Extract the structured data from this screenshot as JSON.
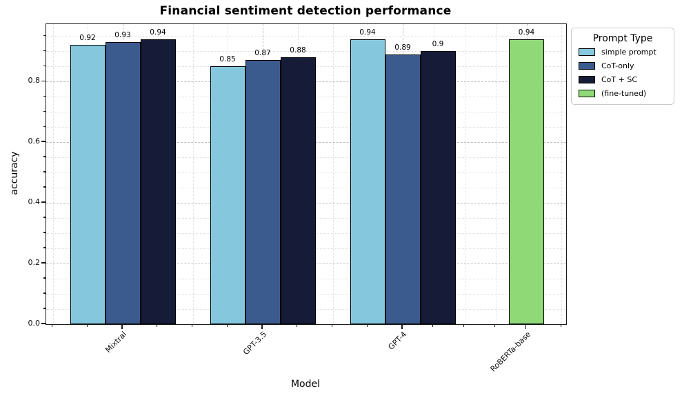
{
  "chart_data": {
    "type": "bar",
    "title": "Financial sentiment detection performance",
    "xlabel": "Model",
    "ylabel": "accuracy",
    "categories": [
      "Mixtral",
      "GPT-3.5",
      "GPT-4",
      "RoBERTa-base"
    ],
    "series": [
      {
        "name": "simple prompt",
        "color": "#85c7dc",
        "values": [
          0.92,
          0.85,
          0.94,
          null
        ]
      },
      {
        "name": "CoT-only",
        "color": "#3b5b8e",
        "values": [
          0.93,
          0.87,
          0.89,
          null
        ]
      },
      {
        "name": "CoT + SC",
        "color": "#161c38",
        "values": [
          0.94,
          0.88,
          0.9,
          null
        ]
      },
      {
        "name": "(fine-tuned)",
        "color": "#8fd977",
        "values": [
          null,
          null,
          null,
          0.94
        ]
      }
    ],
    "legend_title": "Prompt Type",
    "legend_position": "upper right, outside plot",
    "ylim": [
      0,
      0.989
    ],
    "yticks": [
      0.0,
      0.2,
      0.4,
      0.6,
      0.8
    ],
    "y_minor_step": 0.05,
    "grid": true,
    "bar_edge_color": "#000000"
  }
}
